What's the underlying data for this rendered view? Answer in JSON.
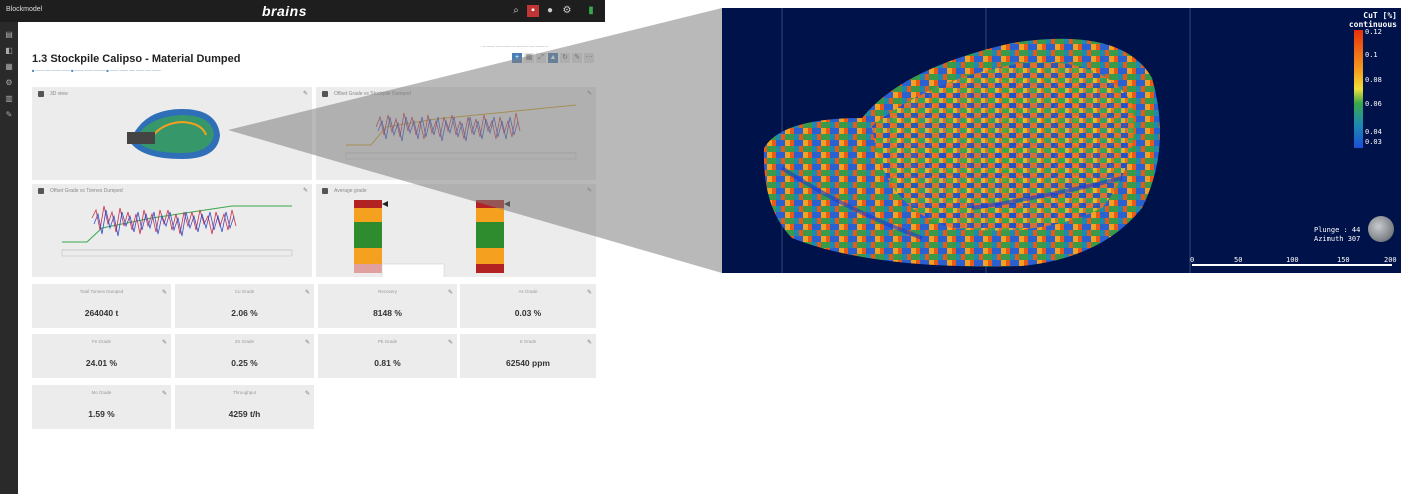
{
  "header": {
    "app_logo_text": "Blockmodel",
    "brand": "brains"
  },
  "page": {
    "title": "1.3 Stockpile Calipso - Material Dumped"
  },
  "panels": {
    "view3d": "3D view",
    "chart_top_right": "Offset Grade vs Stockpile Dumped",
    "chart_mid_left": "Offset Grade vs Tonnes Dumped",
    "grade_bars": "Average grade"
  },
  "kpis": [
    {
      "label": "Total Tonnes Dumped",
      "value": "264040 t"
    },
    {
      "label": "Cu Grade",
      "value": "2.06 %"
    },
    {
      "label": "Recovery",
      "value": "8148 %"
    },
    {
      "label": "As Grade",
      "value": "0.03 %"
    },
    {
      "label": "Fe Grade",
      "value": "24.01 %"
    },
    {
      "label": "Zn Grade",
      "value": "0.25 %"
    },
    {
      "label": "Pb Grade",
      "value": "0.81 %"
    },
    {
      "label": "S Grade",
      "value": "62540 ppm"
    },
    {
      "label": "Mo Grade",
      "value": "1.59 %"
    },
    {
      "label": "Throughput",
      "value": "4259 t/h"
    }
  ],
  "view3d": {
    "legend_title_line1": "CuT [%]",
    "legend_title_line2": "continuous",
    "legend_ticks": [
      "0.12",
      "0.1",
      "0.08",
      "0.06",
      "0.04",
      "0.03"
    ],
    "plunge_label": "Plunge : 44",
    "azimuth_label": "Azimuth 307",
    "scale_ticks": [
      "0",
      "50",
      "100",
      "150",
      "200"
    ],
    "legend_colors": [
      "#e8300a",
      "#f5a01e",
      "#f0e03a",
      "#3aa84a",
      "#1e8ab0",
      "#1a4fd8"
    ]
  }
}
